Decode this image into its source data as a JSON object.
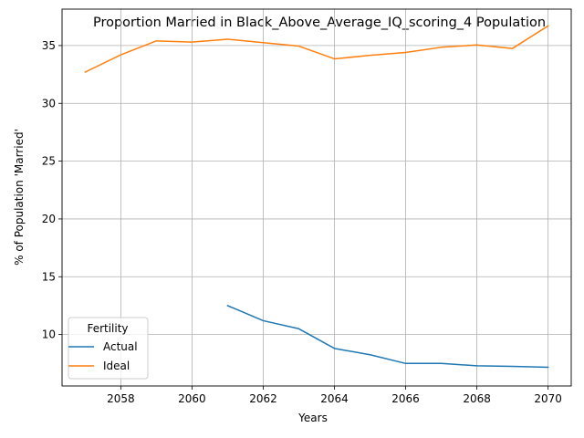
{
  "chart_data": {
    "type": "line",
    "title": "Proportion Married in Black_Above_Average_IQ_scoring_4 Population",
    "xlabel": "Years",
    "ylabel": "% of Population 'Married'",
    "xlim": [
      2056.35,
      2070.65
    ],
    "ylim": [
      5.55,
      38.15
    ],
    "xticks": [
      2058,
      2060,
      2062,
      2064,
      2066,
      2068,
      2070
    ],
    "yticks": [
      10,
      15,
      20,
      25,
      30,
      35
    ],
    "grid": true,
    "legend": {
      "title": "Fertility",
      "placement": "lower-left",
      "entries": [
        "Actual",
        "Ideal"
      ]
    },
    "series": [
      {
        "name": "Actual",
        "color": "#1f77b4",
        "x": [
          2061,
          2062,
          2063,
          2064,
          2065,
          2066,
          2067,
          2068,
          2069,
          2070
        ],
        "values": [
          12.5,
          11.2,
          10.5,
          8.8,
          8.25,
          7.5,
          7.5,
          7.3,
          7.25,
          7.17
        ]
      },
      {
        "name": "Ideal",
        "color": "#ff7f0e",
        "x": [
          2057,
          2058,
          2059,
          2060,
          2061,
          2062,
          2063,
          2064,
          2065,
          2066,
          2067,
          2068,
          2069,
          2070
        ],
        "values": [
          32.7,
          34.2,
          35.4,
          35.3,
          35.55,
          35.25,
          34.95,
          33.85,
          34.15,
          34.4,
          34.85,
          35.05,
          34.75,
          36.7
        ]
      }
    ]
  }
}
